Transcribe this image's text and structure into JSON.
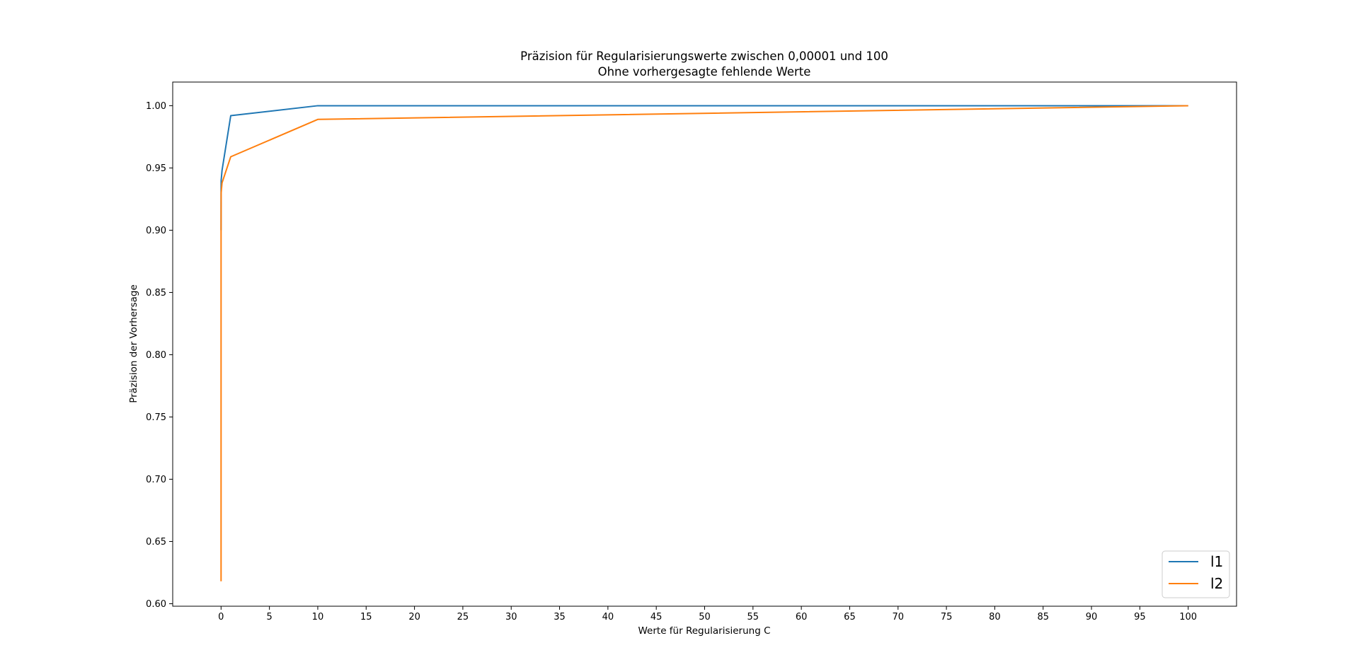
{
  "chart_data": {
    "type": "line",
    "title": "Präzision für Regularisierungswerte zwischen 0,00001 und 100",
    "subtitle": "Ohne vorhergesagte fehlende Werte",
    "xlabel": "Werte für Regularisierung C",
    "ylabel": "Präzision der Vorhersage",
    "xlim": [
      -5,
      105
    ],
    "ylim": [
      0.598,
      1.019
    ],
    "xticks": [
      "0",
      "5",
      "10",
      "15",
      "20",
      "25",
      "30",
      "35",
      "40",
      "45",
      "50",
      "55",
      "60",
      "65",
      "70",
      "75",
      "80",
      "85",
      "90",
      "95",
      "100"
    ],
    "yticks": [
      "0.60",
      "0.65",
      "0.70",
      "0.75",
      "0.80",
      "0.85",
      "0.90",
      "0.95",
      "1.00"
    ],
    "grid": false,
    "legend_position": "bottom-right",
    "x": [
      1e-05,
      0.0001,
      0.001,
      0.01,
      0.1,
      1,
      10,
      100
    ],
    "series": [
      {
        "name": "l1",
        "color": "#1f77b4",
        "values": [
          0.9,
          0.9,
          0.93,
          0.94,
          0.948,
          0.992,
          1.0,
          1.0
        ]
      },
      {
        "name": "l2",
        "color": "#ff7f0e",
        "values": [
          0.618,
          0.75,
          0.9,
          0.93,
          0.938,
          0.959,
          0.989,
          1.0
        ]
      }
    ]
  }
}
